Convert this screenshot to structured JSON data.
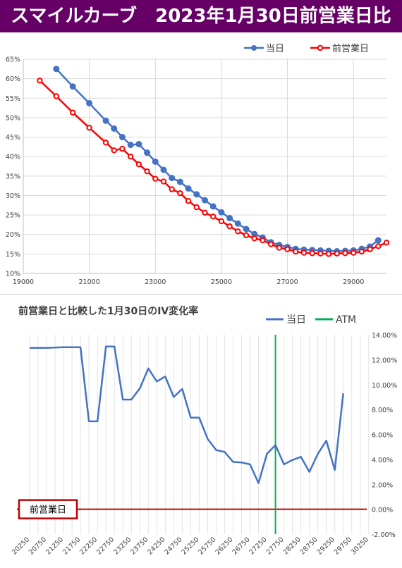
{
  "header": {
    "title": "スマイルカーブ　2023年1月30日前営業日比",
    "background": "#660066"
  },
  "chart_data": [
    {
      "type": "line",
      "title": "",
      "xlabel": "",
      "ylabel": "",
      "xlim": [
        19000,
        30000
      ],
      "ylim": [
        10,
        65
      ],
      "x_ticks": [
        "19000",
        "21000",
        "23000",
        "25000",
        "27000",
        "29000"
      ],
      "y_ticks": [
        "10%",
        "15%",
        "20%",
        "25%",
        "30%",
        "35%",
        "40%",
        "45%",
        "50%",
        "55%",
        "60%",
        "65%"
      ],
      "grid": true,
      "legend": "top-right",
      "series": [
        {
          "name": "当日",
          "color": "#4472C4",
          "points": [
            [
              20000,
              62.5
            ],
            [
              20500,
              58.0
            ],
            [
              21000,
              53.7
            ],
            [
              21500,
              49.2
            ],
            [
              21750,
              47.2
            ],
            [
              22000,
              45.0
            ],
            [
              22250,
              43.0
            ],
            [
              22500,
              43.2
            ],
            [
              22750,
              41.0
            ],
            [
              23000,
              38.7
            ],
            [
              23250,
              36.6
            ],
            [
              23500,
              34.5
            ],
            [
              23750,
              33.5
            ],
            [
              24000,
              31.8
            ],
            [
              24250,
              30.3
            ],
            [
              24500,
              28.8
            ],
            [
              24750,
              27.2
            ],
            [
              25000,
              25.7
            ],
            [
              25250,
              24.2
            ],
            [
              25500,
              22.8
            ],
            [
              25750,
              21.4
            ],
            [
              26000,
              20.1
            ],
            [
              26250,
              19.2
            ],
            [
              26500,
              18.0
            ],
            [
              26750,
              17.3
            ],
            [
              27000,
              16.8
            ],
            [
              27250,
              16.3
            ],
            [
              27500,
              16.1
            ],
            [
              27750,
              16.0
            ],
            [
              28000,
              15.9
            ],
            [
              28250,
              15.8
            ],
            [
              28500,
              15.7
            ],
            [
              28750,
              15.8
            ],
            [
              29000,
              15.9
            ],
            [
              29250,
              16.3
            ],
            [
              29500,
              16.9
            ],
            [
              29750,
              18.5
            ]
          ]
        },
        {
          "name": "前営業日",
          "color": "#FF0000",
          "points": [
            [
              19500,
              59.5
            ],
            [
              20000,
              55.5
            ],
            [
              20500,
              51.3
            ],
            [
              21000,
              47.4
            ],
            [
              21500,
              43.6
            ],
            [
              21750,
              41.6
            ],
            [
              22000,
              42.0
            ],
            [
              22250,
              40.0
            ],
            [
              22500,
              38.0
            ],
            [
              22750,
              36.2
            ],
            [
              23000,
              34.3
            ],
            [
              23250,
              33.6
            ],
            [
              23500,
              31.6
            ],
            [
              23750,
              30.6
            ],
            [
              24000,
              28.6
            ],
            [
              24250,
              27.0
            ],
            [
              24500,
              25.6
            ],
            [
              24750,
              24.6
            ],
            [
              25000,
              23.4
            ],
            [
              25250,
              22.1
            ],
            [
              25500,
              20.8
            ],
            [
              25750,
              19.8
            ],
            [
              26000,
              19.0
            ],
            [
              26250,
              18.5
            ],
            [
              26500,
              17.5
            ],
            [
              26750,
              16.6
            ],
            [
              27000,
              16.2
            ],
            [
              27250,
              15.6
            ],
            [
              27500,
              15.3
            ],
            [
              27750,
              15.2
            ],
            [
              28000,
              15.1
            ],
            [
              28250,
              15.0
            ],
            [
              28500,
              15.1
            ],
            [
              28750,
              15.2
            ],
            [
              29000,
              15.3
            ],
            [
              29250,
              15.6
            ],
            [
              29500,
              16.2
            ],
            [
              29750,
              17.0
            ],
            [
              30000,
              17.9
            ]
          ]
        }
      ]
    },
    {
      "type": "line",
      "title": "前営業日と比較した1月30日のIV変化率",
      "xlabel": "",
      "ylabel": "",
      "ylim": [
        -2,
        14
      ],
      "y_ticks": [
        "-2.00%",
        "0.00%",
        "2.00%",
        "4.00%",
        "6.00%",
        "8.00%",
        "10.00%",
        "12.00%",
        "14.00%"
      ],
      "x_tick_labels": [
        "20250",
        "20750",
        "21250",
        "21750",
        "22250",
        "22750",
        "23250",
        "23750",
        "24250",
        "24750",
        "25250",
        "25750",
        "26250",
        "26750",
        "27250",
        "27750",
        "28250",
        "28750",
        "29250",
        "29750",
        "30250"
      ],
      "categories": [
        "20250",
        "20500",
        "20750",
        "21000",
        "21250",
        "21500",
        "21750",
        "22000",
        "22250",
        "22500",
        "22750",
        "23000",
        "23250",
        "23500",
        "23750",
        "24000",
        "24250",
        "24500",
        "24750",
        "25000",
        "25250",
        "25500",
        "25750",
        "26000",
        "26250",
        "26500",
        "26750",
        "27000",
        "27250",
        "27500",
        "27750",
        "28000",
        "28250",
        "28500",
        "28750",
        "29000",
        "29250",
        "29500",
        "29750",
        "30000",
        "30250"
      ],
      "grid": true,
      "legend": "top",
      "atm_strike": "27500",
      "atm_label": "ATM",
      "atm_color": "#00B050",
      "baseline_label": "前営業日",
      "baseline_color": "#C00000",
      "series": [
        {
          "name": "当日",
          "color": "#4472C4",
          "points": [
            [
              "20250",
              12.95
            ],
            [
              "20750",
              12.95
            ],
            [
              "21250",
              13.0
            ],
            [
              "21750",
              13.0
            ],
            [
              "22000",
              7.05
            ],
            [
              "22250",
              7.05
            ],
            [
              "22500",
              13.05
            ],
            [
              "22750",
              13.05
            ],
            [
              "23000",
              8.8
            ],
            [
              "23250",
              8.8
            ],
            [
              "23500",
              9.7
            ],
            [
              "23750",
              11.3
            ],
            [
              "24000",
              10.25
            ],
            [
              "24250",
              10.65
            ],
            [
              "24500",
              9.0
            ],
            [
              "24750",
              9.65
            ],
            [
              "25000",
              7.35
            ],
            [
              "25250",
              7.35
            ],
            [
              "25500",
              5.65
            ],
            [
              "25750",
              4.75
            ],
            [
              "26000",
              4.6
            ],
            [
              "26250",
              3.8
            ],
            [
              "26500",
              3.75
            ],
            [
              "26750",
              3.6
            ],
            [
              "27000",
              2.1
            ],
            [
              "27250",
              4.45
            ],
            [
              "27500",
              5.15
            ],
            [
              "27750",
              3.6
            ],
            [
              "28000",
              3.95
            ],
            [
              "28250",
              4.2
            ],
            [
              "28500",
              3.0
            ],
            [
              "28750",
              4.45
            ],
            [
              "29000",
              5.5
            ],
            [
              "29250",
              3.15
            ],
            [
              "29500",
              9.3
            ]
          ]
        }
      ]
    }
  ]
}
